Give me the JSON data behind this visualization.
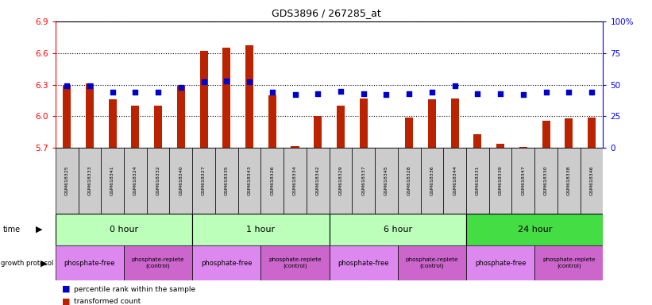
{
  "title": "GDS3896 / 267285_at",
  "samples": [
    "GSM618325",
    "GSM618333",
    "GSM618341",
    "GSM618324",
    "GSM618332",
    "GSM618340",
    "GSM618327",
    "GSM618335",
    "GSM618343",
    "GSM618326",
    "GSM618334",
    "GSM618342",
    "GSM618329",
    "GSM618337",
    "GSM618345",
    "GSM618328",
    "GSM618336",
    "GSM618344",
    "GSM618331",
    "GSM618339",
    "GSM618347",
    "GSM618330",
    "GSM618338",
    "GSM618346"
  ],
  "transformed_count": [
    6.29,
    6.31,
    6.16,
    6.1,
    6.1,
    6.29,
    6.62,
    6.65,
    6.67,
    6.2,
    5.72,
    6.0,
    6.1,
    6.17,
    5.7,
    5.99,
    6.16,
    6.17,
    5.83,
    5.74,
    5.71,
    5.96,
    5.98,
    5.99
  ],
  "percentile_rank": [
    49,
    49,
    44,
    44,
    44,
    48,
    52,
    53,
    52,
    44,
    42,
    43,
    45,
    43,
    42,
    43,
    44,
    49,
    43,
    43,
    42,
    44,
    44,
    44
  ],
  "ylim": [
    5.7,
    6.9
  ],
  "yticks_left": [
    5.7,
    6.0,
    6.3,
    6.6,
    6.9
  ],
  "yticks_right": [
    0,
    25,
    50,
    75,
    100
  ],
  "bar_color": "#bb2200",
  "dot_color": "#0000cc",
  "time_groups": [
    {
      "label": "0 hour",
      "start": 0,
      "end": 6,
      "color": "#bbffbb"
    },
    {
      "label": "1 hour",
      "start": 6,
      "end": 12,
      "color": "#bbffbb"
    },
    {
      "label": "6 hour",
      "start": 12,
      "end": 18,
      "color": "#bbffbb"
    },
    {
      "label": "24 hour",
      "start": 18,
      "end": 24,
      "color": "#44dd44"
    }
  ],
  "protocol_groups": [
    {
      "label": "phosphate-free",
      "start": 0,
      "end": 3
    },
    {
      "label": "phosphate-replete\n(control)",
      "start": 3,
      "end": 6
    },
    {
      "label": "phosphate-free",
      "start": 6,
      "end": 9
    },
    {
      "label": "phosphate-replete\n(control)",
      "start": 9,
      "end": 12
    },
    {
      "label": "phosphate-free",
      "start": 12,
      "end": 15
    },
    {
      "label": "phosphate-replete\n(control)",
      "start": 15,
      "end": 18
    },
    {
      "label": "phosphate-free",
      "start": 18,
      "end": 21
    },
    {
      "label": "phosphate-replete\n(control)",
      "start": 21,
      "end": 24
    }
  ],
  "proto_color_free": "#dd88ee",
  "proto_color_replete": "#cc66cc",
  "background_color": "#ffffff",
  "sample_bg_color": "#cccccc",
  "legend_bar_label": "transformed count",
  "legend_dot_label": "percentile rank within the sample"
}
